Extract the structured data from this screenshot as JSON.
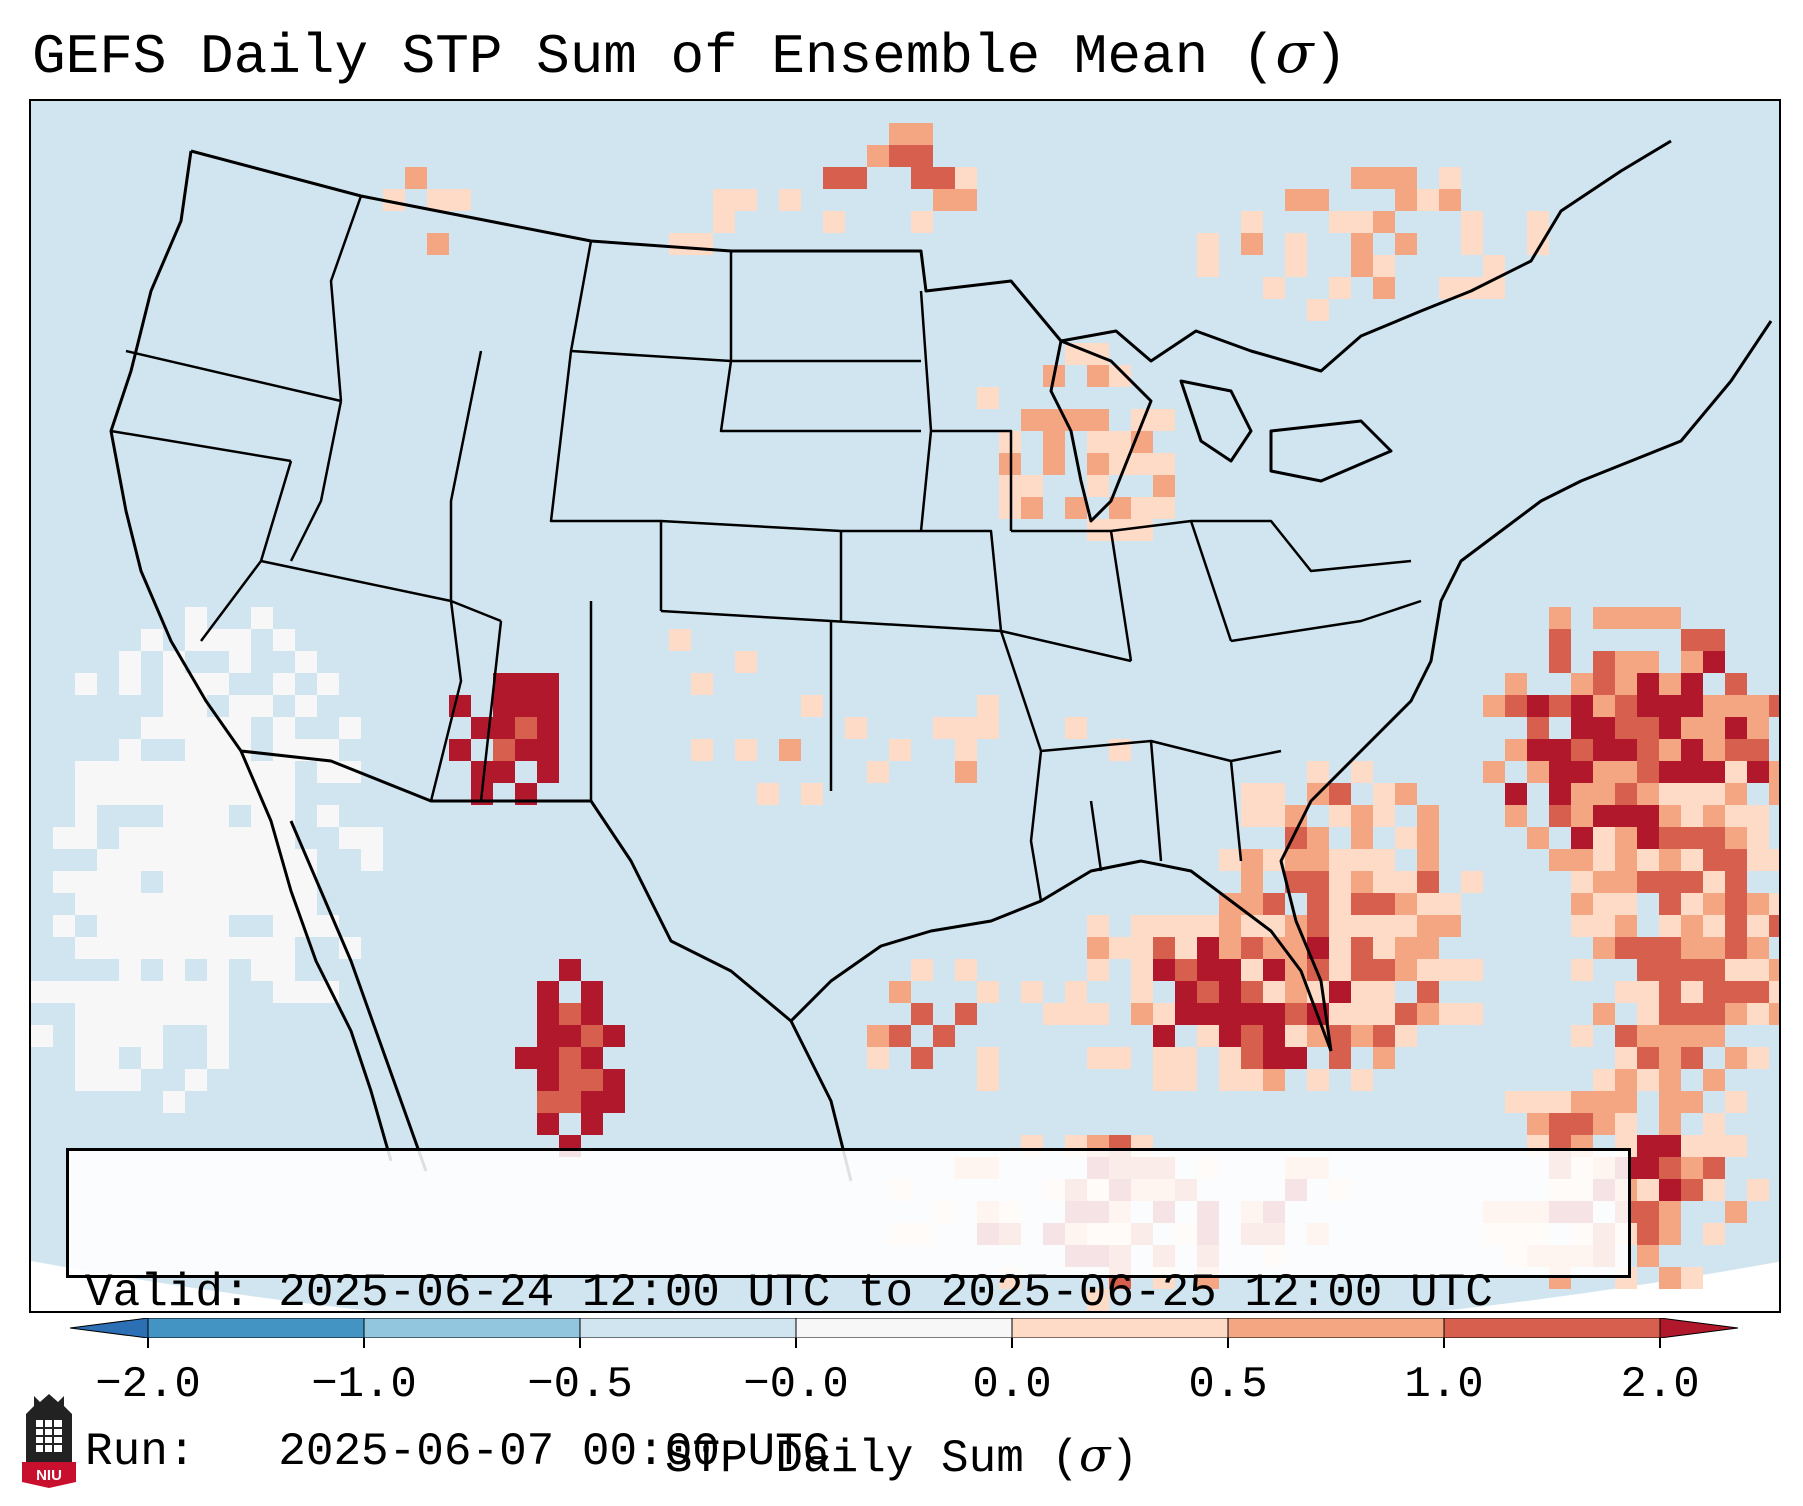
{
  "title": {
    "prefix": "GEFS Daily STP Sum of Ensemble Mean (",
    "symbol": "σ",
    "suffix": ")"
  },
  "info": {
    "valid_line": "Valid: 2025-06-24 12:00 UTC to 2025-06-25 12:00 UTC",
    "run_line": "Run:   2025-06-07 00:00 UTC"
  },
  "colorbar": {
    "label_prefix": "STP Daily Sum (",
    "label_symbol": "σ",
    "label_suffix": ")",
    "ticks": [
      "−2.0",
      "−1.0",
      "−0.5",
      "−0.0",
      "0.0",
      "0.5",
      "1.0",
      "2.0"
    ],
    "bins": [
      {
        "range": "< -2.0",
        "color": "#2c6fb5"
      },
      {
        "range": "-2.0 to -1.0",
        "color": "#4393c3"
      },
      {
        "range": "-1.0 to -0.5",
        "color": "#92c5de"
      },
      {
        "range": "-0.5 to -0.0",
        "color": "#d1e5f0"
      },
      {
        "range": "-0.0 to 0.0",
        "color": "#f7f7f7"
      },
      {
        "range": "0.0 to 0.5",
        "color": "#fddbc7"
      },
      {
        "range": "0.5 to 1.0",
        "color": "#f4a582"
      },
      {
        "range": "1.0 to 2.0",
        "color": "#d6604d"
      },
      {
        "range": "> 2.0",
        "color": "#b2182b"
      }
    ]
  },
  "map": {
    "region": "Contiguous United States",
    "background_color": "#d1e5f0",
    "hotspots": [
      {
        "area": "Southeast US / Gulf Coast",
        "level": "high"
      },
      {
        "area": "Western Atlantic offshore",
        "level": "high"
      },
      {
        "area": "Northern Arizona",
        "level": "high"
      },
      {
        "area": "Northwest Mexico",
        "level": "high"
      },
      {
        "area": "Great Lakes",
        "level": "low"
      }
    ]
  },
  "logo": {
    "text": "NIU"
  }
}
